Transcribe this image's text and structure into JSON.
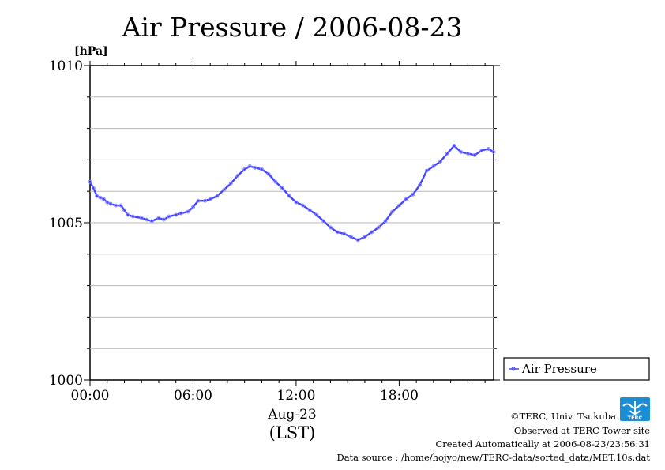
{
  "chart_data": {
    "type": "line",
    "title": "Air Pressure / 2006-08-23",
    "ylabel": "[hPa]",
    "ylim": [
      1000,
      1010
    ],
    "yticks": [
      {
        "value": 1000,
        "label": "1000"
      },
      {
        "value": 1005,
        "label": "1005"
      },
      {
        "value": 1010,
        "label": "1010"
      }
    ],
    "ygrid_step": 1,
    "xlim": [
      0,
      23.5
    ],
    "xticks": [
      {
        "value": 0,
        "label": "00:00"
      },
      {
        "value": 6,
        "label": "06:00"
      },
      {
        "value": 12,
        "label": "12:00"
      },
      {
        "value": 18,
        "label": "18:00"
      }
    ],
    "xlabel_date": "Aug-23",
    "xlabel_tz": "(LST)",
    "grid": true,
    "legend_position": "bottom-right-outside",
    "series": [
      {
        "name": "Air Pressure",
        "color": "#4444ff",
        "points": [
          [
            0.0,
            1006.3
          ],
          [
            0.2,
            1006.1
          ],
          [
            0.4,
            1005.85
          ],
          [
            0.6,
            1005.8
          ],
          [
            0.8,
            1005.75
          ],
          [
            1.0,
            1005.65
          ],
          [
            1.2,
            1005.6
          ],
          [
            1.5,
            1005.55
          ],
          [
            1.8,
            1005.55
          ],
          [
            2.0,
            1005.4
          ],
          [
            2.2,
            1005.25
          ],
          [
            2.5,
            1005.2
          ],
          [
            3.0,
            1005.15
          ],
          [
            3.3,
            1005.1
          ],
          [
            3.6,
            1005.05
          ],
          [
            4.0,
            1005.15
          ],
          [
            4.3,
            1005.1
          ],
          [
            4.6,
            1005.2
          ],
          [
            5.0,
            1005.25
          ],
          [
            5.3,
            1005.3
          ],
          [
            5.7,
            1005.35
          ],
          [
            6.0,
            1005.5
          ],
          [
            6.3,
            1005.7
          ],
          [
            6.7,
            1005.7
          ],
          [
            7.0,
            1005.75
          ],
          [
            7.4,
            1005.85
          ],
          [
            7.8,
            1006.05
          ],
          [
            8.2,
            1006.25
          ],
          [
            8.6,
            1006.5
          ],
          [
            9.0,
            1006.7
          ],
          [
            9.3,
            1006.8
          ],
          [
            9.6,
            1006.75
          ],
          [
            10.0,
            1006.7
          ],
          [
            10.4,
            1006.55
          ],
          [
            10.8,
            1006.3
          ],
          [
            11.2,
            1006.1
          ],
          [
            11.6,
            1005.85
          ],
          [
            12.0,
            1005.65
          ],
          [
            12.4,
            1005.55
          ],
          [
            12.8,
            1005.4
          ],
          [
            13.2,
            1005.25
          ],
          [
            13.6,
            1005.05
          ],
          [
            14.0,
            1004.85
          ],
          [
            14.4,
            1004.7
          ],
          [
            14.8,
            1004.65
          ],
          [
            15.2,
            1004.55
          ],
          [
            15.6,
            1004.45
          ],
          [
            16.0,
            1004.55
          ],
          [
            16.4,
            1004.7
          ],
          [
            16.8,
            1004.85
          ],
          [
            17.2,
            1005.05
          ],
          [
            17.6,
            1005.35
          ],
          [
            18.0,
            1005.55
          ],
          [
            18.4,
            1005.75
          ],
          [
            18.8,
            1005.9
          ],
          [
            19.2,
            1006.2
          ],
          [
            19.6,
            1006.65
          ],
          [
            20.0,
            1006.8
          ],
          [
            20.4,
            1006.95
          ],
          [
            20.8,
            1007.2
          ],
          [
            21.2,
            1007.45
          ],
          [
            21.6,
            1007.25
          ],
          [
            22.0,
            1007.2
          ],
          [
            22.4,
            1007.15
          ],
          [
            22.8,
            1007.3
          ],
          [
            23.2,
            1007.35
          ],
          [
            23.5,
            1007.25
          ]
        ]
      }
    ]
  },
  "footer": {
    "copyright": "©TERC, Univ. Tsukuba",
    "observed": "Observed at TERC Tower site",
    "created": "Created Automatically at 2006-08-23/23:56:31",
    "source": "Data source : /home/hojyo/new/TERC-data/sorted_data/MET.10s.dat"
  },
  "logo": {
    "text": "TERC",
    "color": "#1a8fd6"
  }
}
